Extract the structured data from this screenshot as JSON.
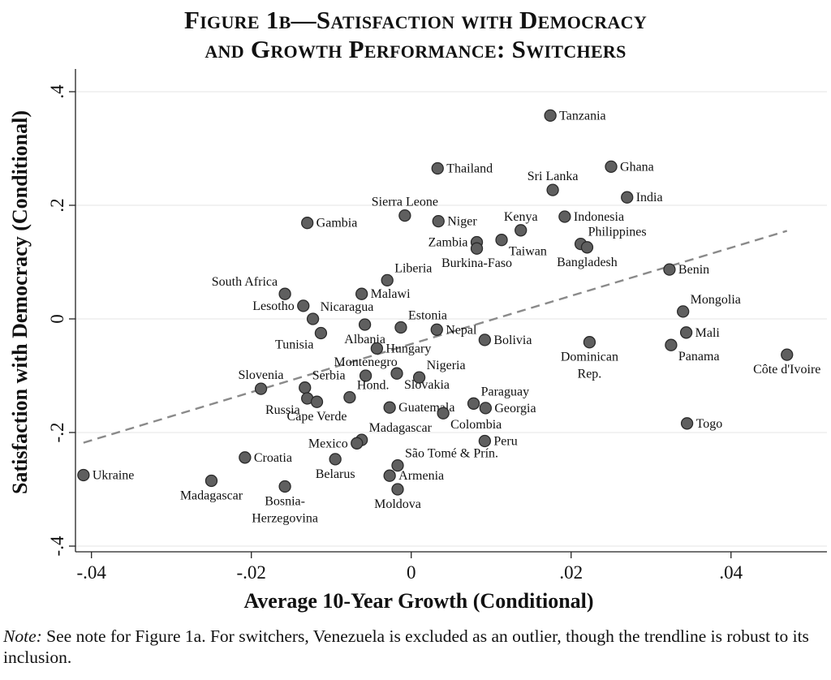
{
  "title_line1": "Figure 1b—Satisfaction with Democracy",
  "title_line2": "and Growth Performance: Switchers",
  "note_label": "Note:",
  "note_text": "See note for Figure 1a. For switchers, Venezuela is excluded as an outlier, though the trendline is robust to its inclusion.",
  "chart_data": {
    "type": "scatter",
    "xlabel": "Average 10-Year Growth (Conditional)",
    "ylabel": "Satisfaction with Democracy (Conditional)",
    "xlim": [
      -0.042,
      0.052
    ],
    "ylim": [
      -0.41,
      0.44
    ],
    "x_ticks": [
      -0.04,
      -0.02,
      0,
      0.02,
      0.04
    ],
    "x_tick_labels": [
      "-.04",
      "-.02",
      "0",
      ".02",
      ".04"
    ],
    "y_ticks": [
      -0.4,
      -0.2,
      0,
      0.2,
      0.4
    ],
    "y_tick_labels": [
      "-.4",
      "-.2",
      "0",
      ".2",
      ".4"
    ],
    "grid": "horizontal",
    "point_color": "#5f5f5f",
    "trendline": {
      "style": "dashed",
      "color": "#8a8a8a",
      "x": [
        -0.041,
        0.047
      ],
      "y": [
        -0.218,
        0.155
      ]
    },
    "points": [
      {
        "label": "Tanzania",
        "x": 0.0174,
        "y": 0.358,
        "pos": "e"
      },
      {
        "label": "Thailand",
        "x": 0.0033,
        "y": 0.265,
        "pos": "e"
      },
      {
        "label": "Ghana",
        "x": 0.025,
        "y": 0.268,
        "pos": "e"
      },
      {
        "label": "Sri Lanka",
        "x": 0.0177,
        "y": 0.227,
        "pos": "n"
      },
      {
        "label": "India",
        "x": 0.027,
        "y": 0.214,
        "pos": "e"
      },
      {
        "label": "Sierra Leone",
        "x": -0.0008,
        "y": 0.182,
        "pos": "n"
      },
      {
        "label": "Niger",
        "x": 0.0034,
        "y": 0.172,
        "pos": "e"
      },
      {
        "label": "Gambia",
        "x": -0.013,
        "y": 0.169,
        "pos": "e"
      },
      {
        "label": "Kenya",
        "x": 0.0137,
        "y": 0.156,
        "pos": "n"
      },
      {
        "label": "Indonesia",
        "x": 0.0192,
        "y": 0.18,
        "pos": "e"
      },
      {
        "label": "Zambia",
        "x": 0.0082,
        "y": 0.135,
        "pos": "w"
      },
      {
        "label": "Taiwan",
        "x": 0.0113,
        "y": 0.139,
        "pos": "se"
      },
      {
        "label": "Burkina-Faso",
        "x": 0.0082,
        "y": 0.124,
        "pos": "s"
      },
      {
        "label": "Philippines",
        "x": 0.0212,
        "y": 0.132,
        "pos": "ne"
      },
      {
        "label": "Bangladesh",
        "x": 0.022,
        "y": 0.126,
        "pos": "s"
      },
      {
        "label": "Benin",
        "x": 0.0323,
        "y": 0.087,
        "pos": "e"
      },
      {
        "label": "Liberia",
        "x": -0.003,
        "y": 0.068,
        "pos": "ne"
      },
      {
        "label": "South Africa",
        "x": -0.0158,
        "y": 0.044,
        "pos": "nw"
      },
      {
        "label": "Malawi",
        "x": -0.0062,
        "y": 0.044,
        "pos": "e"
      },
      {
        "label": "Lesotho",
        "x": -0.0135,
        "y": 0.023,
        "pos": "w"
      },
      {
        "label": "Nicaragua",
        "x": -0.0123,
        "y": 0.0,
        "pos": "ne"
      },
      {
        "label": "Mongolia",
        "x": 0.034,
        "y": 0.013,
        "pos": "ne"
      },
      {
        "label": "Estonia",
        "x": -0.0013,
        "y": -0.015,
        "pos": "ne"
      },
      {
        "label": "Albania",
        "x": -0.0058,
        "y": -0.01,
        "pos": "s"
      },
      {
        "label": "Tunisia",
        "x": -0.0113,
        "y": -0.025,
        "pos": "sw"
      },
      {
        "label": "Nepal",
        "x": 0.0032,
        "y": -0.019,
        "pos": "e"
      },
      {
        "label": "Bolivia",
        "x": 0.0092,
        "y": -0.037,
        "pos": "e"
      },
      {
        "label": "Mali",
        "x": 0.0344,
        "y": -0.024,
        "pos": "e"
      },
      {
        "label": "Dominican Rep.",
        "x": 0.0223,
        "y": -0.041,
        "pos": "s",
        "lines": [
          "Dominican",
          "Rep."
        ]
      },
      {
        "label": "Panama",
        "x": 0.0325,
        "y": -0.046,
        "pos": "se"
      },
      {
        "label": "Côte d'Ivoire",
        "x": 0.047,
        "y": -0.063,
        "pos": "s"
      },
      {
        "label": "Hungary",
        "x": -0.0043,
        "y": -0.052,
        "pos": "e"
      },
      {
        "label": "Montenegro",
        "x": -0.0057,
        "y": -0.1,
        "pos": "n"
      },
      {
        "label": "Nigeria",
        "x": 0.001,
        "y": -0.103,
        "pos": "ne"
      },
      {
        "label": "Slovakia",
        "x": -0.0018,
        "y": -0.096,
        "pos": "se"
      },
      {
        "label": "Slovenia",
        "x": -0.0188,
        "y": -0.123,
        "pos": "n"
      },
      {
        "label": "Serbia",
        "x": -0.0133,
        "y": -0.121,
        "pos": "ne"
      },
      {
        "label": "Russia",
        "x": -0.013,
        "y": -0.14,
        "pos": "sw"
      },
      {
        "label": "Cape Verde",
        "x": -0.0118,
        "y": -0.146,
        "pos": "s"
      },
      {
        "label": "Hond.",
        "x": -0.0077,
        "y": -0.138,
        "pos": "ne"
      },
      {
        "label": "Guatemala",
        "x": -0.0027,
        "y": -0.156,
        "pos": "e"
      },
      {
        "label": "Paraguay",
        "x": 0.0078,
        "y": -0.149,
        "pos": "ne"
      },
      {
        "label": "Georgia",
        "x": 0.0093,
        "y": -0.157,
        "pos": "e"
      },
      {
        "label": "Colombia",
        "x": 0.004,
        "y": -0.166,
        "pos": "se"
      },
      {
        "label": "Togo",
        "x": 0.0345,
        "y": -0.184,
        "pos": "e"
      },
      {
        "label": "Madagascar",
        "x": -0.0062,
        "y": -0.213,
        "pos": "ne"
      },
      {
        "label": "Mexico",
        "x": -0.0068,
        "y": -0.219,
        "pos": "w"
      },
      {
        "label": "Peru",
        "x": 0.0092,
        "y": -0.215,
        "pos": "e"
      },
      {
        "label": "Croatia",
        "x": -0.0208,
        "y": -0.244,
        "pos": "e"
      },
      {
        "label": "Belarus",
        "x": -0.0095,
        "y": -0.247,
        "pos": "s"
      },
      {
        "label": "São Tomé & Prín.",
        "x": -0.0017,
        "y": -0.258,
        "pos": "ne"
      },
      {
        "label": "Armenia",
        "x": -0.0027,
        "y": -0.276,
        "pos": "e"
      },
      {
        "label": "Moldova",
        "x": -0.0017,
        "y": -0.3,
        "pos": "s"
      },
      {
        "label": "Ukraine",
        "x": -0.041,
        "y": -0.275,
        "pos": "e"
      },
      {
        "label": "Madagascar",
        "x": -0.025,
        "y": -0.285,
        "pos": "s"
      },
      {
        "label": "Bosnia-Herzegovina",
        "x": -0.0158,
        "y": -0.295,
        "pos": "s",
        "lines": [
          "Bosnia-",
          "Herzegovina"
        ]
      }
    ]
  }
}
